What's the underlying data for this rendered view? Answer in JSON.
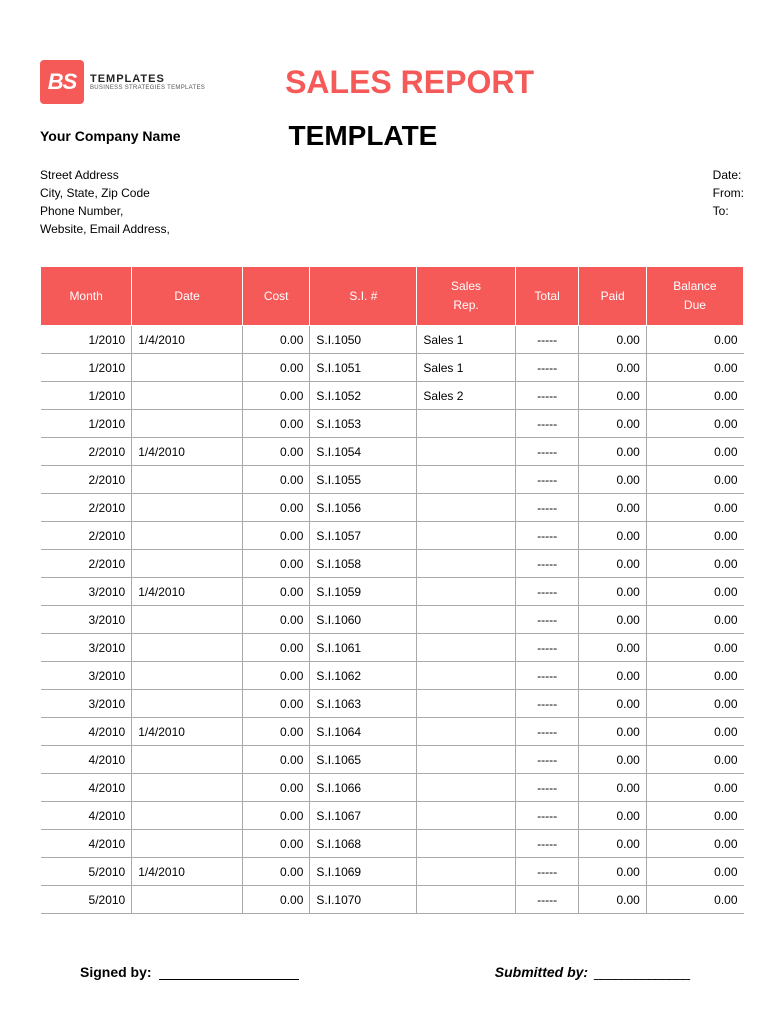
{
  "logo": {
    "box_text": "BS",
    "text1": "TEMPLATES",
    "text2": "BUSINESS STRATEGIES TEMPLATES",
    "box_color": "#f55a59"
  },
  "title": {
    "main": "SALES REPORT",
    "sub": "TEMPLATE",
    "main_color": "#f55a59"
  },
  "company": {
    "name": "Your Company Name",
    "line1": "Street Address",
    "line2": "City, State, Zip Code",
    "line3": "Phone Number,",
    "line4": "Website, Email Address,"
  },
  "meta": {
    "date_label": "Date:",
    "from_label": "From:",
    "to_label": "To:"
  },
  "table": {
    "header_bg": "#f55a59",
    "columns": [
      "Month",
      "Date",
      "Cost",
      "S.I. #",
      "Sales Rep.",
      "Total",
      "Paid",
      "Balance Due"
    ],
    "col_align": [
      "r",
      "l",
      "r",
      "l",
      "l",
      "c",
      "r",
      "r"
    ],
    "rows": [
      [
        "1/2010",
        "1/4/2010",
        "0.00",
        "S.I.1050",
        "Sales 1",
        "-----",
        "0.00",
        "0.00"
      ],
      [
        "1/2010",
        "",
        "0.00",
        "S.I.1051",
        "Sales 1",
        "-----",
        "0.00",
        "0.00"
      ],
      [
        "1/2010",
        "",
        "0.00",
        "S.I.1052",
        "Sales 2",
        "-----",
        "0.00",
        "0.00"
      ],
      [
        "1/2010",
        "",
        "0.00",
        "S.I.1053",
        "",
        "-----",
        "0.00",
        "0.00"
      ],
      [
        "2/2010",
        "1/4/2010",
        "0.00",
        "S.I.1054",
        "",
        "-----",
        "0.00",
        "0.00"
      ],
      [
        "2/2010",
        "",
        "0.00",
        "S.I.1055",
        "",
        "-----",
        "0.00",
        "0.00"
      ],
      [
        "2/2010",
        "",
        "0.00",
        "S.I.1056",
        "",
        "-----",
        "0.00",
        "0.00"
      ],
      [
        "2/2010",
        "",
        "0.00",
        "S.I.1057",
        "",
        "-----",
        "0.00",
        "0.00"
      ],
      [
        "2/2010",
        "",
        "0.00",
        "S.I.1058",
        "",
        "-----",
        "0.00",
        "0.00"
      ],
      [
        "3/2010",
        "1/4/2010",
        "0.00",
        "S.I.1059",
        "",
        "-----",
        "0.00",
        "0.00"
      ],
      [
        "3/2010",
        "",
        "0.00",
        "S.I.1060",
        "",
        "-----",
        "0.00",
        "0.00"
      ],
      [
        "3/2010",
        "",
        "0.00",
        "S.I.1061",
        "",
        "-----",
        "0.00",
        "0.00"
      ],
      [
        "3/2010",
        "",
        "0.00",
        "S.I.1062",
        "",
        "-----",
        "0.00",
        "0.00"
      ],
      [
        "3/2010",
        "",
        "0.00",
        "S.I.1063",
        "",
        "-----",
        "0.00",
        "0.00"
      ],
      [
        "4/2010",
        "1/4/2010",
        "0.00",
        "S.I.1064",
        "",
        "-----",
        "0.00",
        "0.00"
      ],
      [
        "4/2010",
        "",
        "0.00",
        "S.I.1065",
        "",
        "-----",
        "0.00",
        "0.00"
      ],
      [
        "4/2010",
        "",
        "0.00",
        "S.I.1066",
        "",
        "-----",
        "0.00",
        "0.00"
      ],
      [
        "4/2010",
        "",
        "0.00",
        "S.I.1067",
        "",
        "-----",
        "0.00",
        "0.00"
      ],
      [
        "4/2010",
        "",
        "0.00",
        "S.I.1068",
        "",
        "-----",
        "0.00",
        "0.00"
      ],
      [
        "5/2010",
        "1/4/2010",
        "0.00",
        "S.I.1069",
        "",
        "-----",
        "0.00",
        "0.00"
      ],
      [
        "5/2010",
        "",
        "0.00",
        "S.I.1070",
        "",
        "-----",
        "0.00",
        "0.00"
      ]
    ]
  },
  "footer": {
    "signed_label": "Signed by:",
    "submitted_label": "Submitted by:",
    "line_fill": "______________"
  }
}
